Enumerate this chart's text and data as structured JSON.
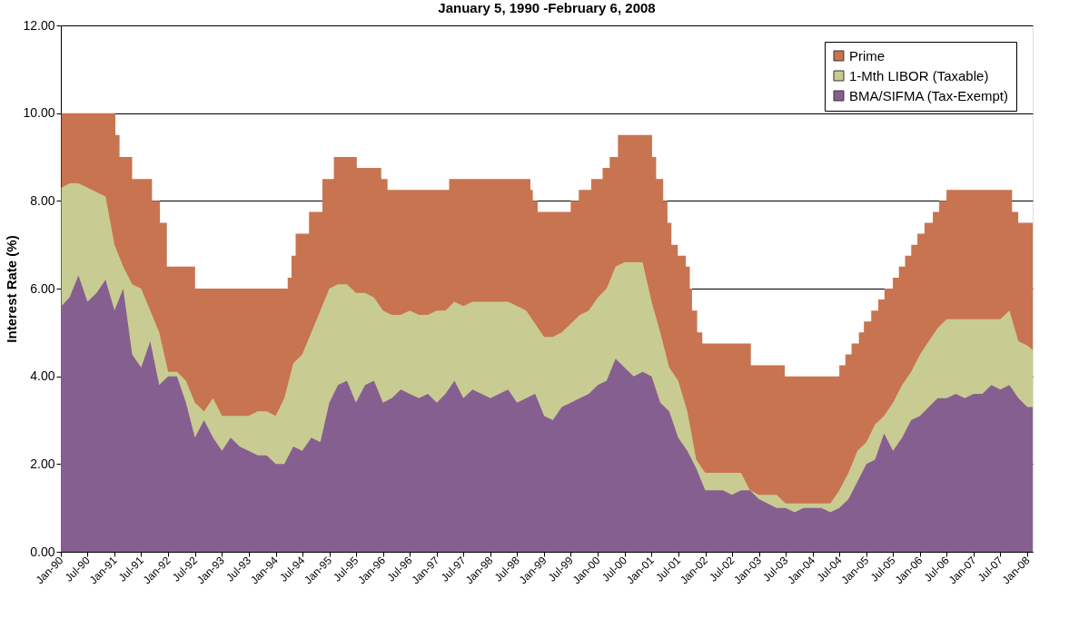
{
  "chart_data": {
    "type": "area",
    "title": "January 5, 1990 -February 6, 2008",
    "ylabel": "Interest Rate (%)",
    "x": [
      "1990-01-05",
      "1990-03",
      "1990-05",
      "1990-07",
      "1990-09",
      "1990-11",
      "1991-01",
      "1991-03",
      "1991-05",
      "1991-07",
      "1991-09",
      "1991-11",
      "1992-01",
      "1992-03",
      "1992-05",
      "1992-07",
      "1992-09",
      "1992-11",
      "1993-01",
      "1993-03",
      "1993-05",
      "1993-07",
      "1993-09",
      "1993-11",
      "1994-01",
      "1994-03",
      "1994-05",
      "1994-07",
      "1994-09",
      "1994-11",
      "1995-01",
      "1995-03",
      "1995-05",
      "1995-07",
      "1995-09",
      "1995-11",
      "1996-01",
      "1996-03",
      "1996-05",
      "1996-07",
      "1996-09",
      "1996-11",
      "1997-01",
      "1997-03",
      "1997-05",
      "1997-07",
      "1997-09",
      "1997-11",
      "1998-01",
      "1998-03",
      "1998-05",
      "1998-07",
      "1998-09",
      "1998-11",
      "1999-01",
      "1999-03",
      "1999-05",
      "1999-07",
      "1999-09",
      "1999-11",
      "2000-01",
      "2000-03",
      "2000-05",
      "2000-07",
      "2000-09",
      "2000-11",
      "2001-01",
      "2001-03",
      "2001-05",
      "2001-07",
      "2001-09",
      "2001-11",
      "2002-01",
      "2002-03",
      "2002-05",
      "2002-07",
      "2002-09",
      "2002-11",
      "2003-01",
      "2003-03",
      "2003-05",
      "2003-07",
      "2003-09",
      "2003-11",
      "2004-01",
      "2004-03",
      "2004-05",
      "2004-07",
      "2004-09",
      "2004-11",
      "2005-01",
      "2005-03",
      "2005-05",
      "2005-07",
      "2005-09",
      "2005-11",
      "2006-01",
      "2006-03",
      "2006-05",
      "2006-07",
      "2006-09",
      "2006-11",
      "2007-01",
      "2007-03",
      "2007-05",
      "2007-07",
      "2007-09",
      "2007-11",
      "2008-01",
      "2008-02-06"
    ],
    "series": [
      {
        "name": "Prime",
        "color": "#c87450",
        "x": [
          "1990-01-05",
          "1991-01-07",
          "1991-01-07",
          "1991-02-04",
          "1991-02-04",
          "1991-05-01",
          "1991-05-01",
          "1991-09-13",
          "1991-09-13",
          "1991-11-06",
          "1991-11-06",
          "1991-12-23",
          "1991-12-23",
          "1992-07-02",
          "1992-07-02",
          "1994-03-24",
          "1994-03-24",
          "1994-04-19",
          "1994-04-19",
          "1994-05-17",
          "1994-05-17",
          "1994-08-16",
          "1994-08-16",
          "1994-11-15",
          "1994-11-15",
          "1995-02-01",
          "1995-02-01",
          "1995-07-07",
          "1995-07-07",
          "1995-12-20",
          "1995-12-20",
          "1996-02-01",
          "1996-02-01",
          "1997-03-26",
          "1997-03-26",
          "1998-09-30",
          "1998-09-30",
          "1998-10-16",
          "1998-10-16",
          "1998-11-18",
          "1998-11-18",
          "1999-07-01",
          "1999-07-01",
          "1999-08-25",
          "1999-08-25",
          "1999-11-17",
          "1999-11-17",
          "2000-02-03",
          "2000-02-03",
          "2000-03-22",
          "2000-03-22",
          "2000-05-17",
          "2000-05-17",
          "2001-01-04",
          "2001-01-04",
          "2001-02-01",
          "2001-02-01",
          "2001-03-21",
          "2001-03-21",
          "2001-04-19",
          "2001-04-19",
          "2001-05-16",
          "2001-05-16",
          "2001-06-28",
          "2001-06-28",
          "2001-08-22",
          "2001-08-22",
          "2001-09-18",
          "2001-09-18",
          "2001-10-03",
          "2001-10-03",
          "2001-11-07",
          "2001-11-07",
          "2001-12-12",
          "2001-12-12",
          "2002-11-07",
          "2002-11-07",
          "2003-06-26",
          "2003-06-26",
          "2004-07-01",
          "2004-07-01",
          "2004-08-11",
          "2004-08-11",
          "2004-09-22",
          "2004-09-22",
          "2004-11-11",
          "2004-11-11",
          "2004-12-15",
          "2004-12-15",
          "2005-02-03",
          "2005-02-03",
          "2005-03-23",
          "2005-03-23",
          "2005-05-04",
          "2005-05-04",
          "2005-06-30",
          "2005-06-30",
          "2005-08-10",
          "2005-08-10",
          "2005-09-21",
          "2005-09-21",
          "2005-11-02",
          "2005-11-02",
          "2005-12-14",
          "2005-12-14",
          "2006-01-31",
          "2006-01-31",
          "2006-03-29",
          "2006-03-29",
          "2006-05-11",
          "2006-05-11",
          "2006-06-30",
          "2006-06-30",
          "2007-09-19",
          "2007-09-19",
          "2007-10-31",
          "2007-10-31",
          "2008-02-06"
        ],
        "values": [
          10.0,
          10.0,
          9.5,
          9.5,
          9.0,
          9.0,
          8.5,
          8.5,
          8.0,
          8.0,
          7.5,
          7.5,
          6.5,
          6.5,
          6.0,
          6.0,
          6.25,
          6.25,
          6.75,
          6.75,
          7.25,
          7.25,
          7.75,
          7.75,
          8.5,
          8.5,
          9.0,
          9.0,
          8.75,
          8.75,
          8.5,
          8.5,
          8.25,
          8.25,
          8.5,
          8.5,
          8.25,
          8.25,
          8.0,
          8.0,
          7.75,
          7.75,
          8.0,
          8.0,
          8.25,
          8.25,
          8.5,
          8.5,
          8.75,
          8.75,
          9.0,
          9.0,
          9.5,
          9.5,
          9.0,
          9.0,
          8.5,
          8.5,
          8.0,
          8.0,
          7.5,
          7.5,
          7.0,
          7.0,
          6.75,
          6.75,
          6.5,
          6.5,
          6.0,
          6.0,
          5.5,
          5.5,
          5.0,
          5.0,
          4.75,
          4.75,
          4.25,
          4.25,
          4.0,
          4.0,
          4.25,
          4.25,
          4.5,
          4.5,
          4.75,
          4.75,
          5.0,
          5.0,
          5.25,
          5.25,
          5.5,
          5.5,
          5.75,
          5.75,
          6.0,
          6.0,
          6.25,
          6.25,
          6.5,
          6.5,
          6.75,
          6.75,
          7.0,
          7.0,
          7.25,
          7.25,
          7.5,
          7.5,
          7.75,
          7.75,
          8.0,
          8.0,
          8.25,
          8.25,
          7.75,
          7.75,
          7.5,
          7.5
        ]
      },
      {
        "name": "1-Mth LIBOR (Taxable)",
        "color": "#c9cc92",
        "values": [
          8.3,
          8.4,
          8.4,
          8.3,
          8.2,
          8.1,
          7.0,
          6.5,
          6.1,
          6.0,
          5.5,
          5.0,
          4.1,
          4.1,
          3.9,
          3.4,
          3.2,
          3.5,
          3.1,
          3.1,
          3.1,
          3.1,
          3.2,
          3.2,
          3.1,
          3.5,
          4.3,
          4.5,
          5.0,
          5.5,
          6.0,
          6.1,
          6.1,
          5.9,
          5.9,
          5.8,
          5.5,
          5.4,
          5.4,
          5.5,
          5.4,
          5.4,
          5.5,
          5.5,
          5.7,
          5.6,
          5.7,
          5.7,
          5.7,
          5.7,
          5.7,
          5.6,
          5.5,
          5.2,
          4.9,
          4.9,
          5.0,
          5.2,
          5.4,
          5.5,
          5.8,
          6.0,
          6.5,
          6.6,
          6.6,
          6.6,
          5.7,
          5.0,
          4.2,
          3.9,
          3.2,
          2.1,
          1.8,
          1.8,
          1.8,
          1.8,
          1.8,
          1.4,
          1.3,
          1.3,
          1.3,
          1.1,
          1.1,
          1.1,
          1.1,
          1.1,
          1.1,
          1.4,
          1.8,
          2.3,
          2.5,
          2.9,
          3.1,
          3.4,
          3.8,
          4.1,
          4.5,
          4.8,
          5.1,
          5.3,
          5.3,
          5.3,
          5.3,
          5.3,
          5.3,
          5.3,
          5.5,
          4.8,
          4.7,
          4.6
        ]
      },
      {
        "name": "BMA/SIFMA (Tax-Exempt)",
        "color": "#865f91",
        "values": [
          5.6,
          5.8,
          6.3,
          5.7,
          5.9,
          6.2,
          5.5,
          6.0,
          4.5,
          4.2,
          4.8,
          3.8,
          4.0,
          4.0,
          3.4,
          2.6,
          3.0,
          2.6,
          2.3,
          2.6,
          2.4,
          2.3,
          2.2,
          2.2,
          2.0,
          2.0,
          2.4,
          2.3,
          2.6,
          2.5,
          3.4,
          3.8,
          3.9,
          3.4,
          3.8,
          3.9,
          3.4,
          3.5,
          3.7,
          3.6,
          3.5,
          3.6,
          3.4,
          3.6,
          3.9,
          3.5,
          3.7,
          3.6,
          3.5,
          3.6,
          3.7,
          3.4,
          3.5,
          3.6,
          3.1,
          3.0,
          3.3,
          3.4,
          3.5,
          3.6,
          3.8,
          3.9,
          4.4,
          4.2,
          4.0,
          4.1,
          4.0,
          3.4,
          3.2,
          2.6,
          2.3,
          1.9,
          1.4,
          1.4,
          1.4,
          1.3,
          1.4,
          1.4,
          1.2,
          1.1,
          1.0,
          1.0,
          0.9,
          1.0,
          1.0,
          1.0,
          0.9,
          1.0,
          1.2,
          1.6,
          2.0,
          2.1,
          2.7,
          2.3,
          2.6,
          3.0,
          3.1,
          3.3,
          3.5,
          3.5,
          3.6,
          3.5,
          3.6,
          3.6,
          3.8,
          3.7,
          3.8,
          3.5,
          3.3,
          3.3
        ]
      }
    ],
    "xlim": [
      "1990-01-01",
      "2008-02-06"
    ],
    "xticks": [
      {
        "value": "1990-01",
        "label": "Jan-90"
      },
      {
        "value": "1990-07",
        "label": "Jul-90"
      },
      {
        "value": "1991-01",
        "label": "Jan-91"
      },
      {
        "value": "1991-07",
        "label": "Jul-91"
      },
      {
        "value": "1992-01",
        "label": "Jan-92"
      },
      {
        "value": "1992-07",
        "label": "Jul-92"
      },
      {
        "value": "1993-01",
        "label": "Jan-93"
      },
      {
        "value": "1993-07",
        "label": "Jul-93"
      },
      {
        "value": "1994-01",
        "label": "Jan-94"
      },
      {
        "value": "1994-07",
        "label": "Jul-94"
      },
      {
        "value": "1995-01",
        "label": "Jan-95"
      },
      {
        "value": "1995-07",
        "label": "Jul-95"
      },
      {
        "value": "1996-01",
        "label": "Jan-96"
      },
      {
        "value": "1996-07",
        "label": "Jul-96"
      },
      {
        "value": "1997-01",
        "label": "Jan-97"
      },
      {
        "value": "1997-07",
        "label": "Jul-97"
      },
      {
        "value": "1998-01",
        "label": "Jan-98"
      },
      {
        "value": "1998-07",
        "label": "Jul-98"
      },
      {
        "value": "1999-01",
        "label": "Jan-99"
      },
      {
        "value": "1999-07",
        "label": "Jul-99"
      },
      {
        "value": "2000-01",
        "label": "Jan-00"
      },
      {
        "value": "2000-07",
        "label": "Jul-00"
      },
      {
        "value": "2001-01",
        "label": "Jan-01"
      },
      {
        "value": "2001-07",
        "label": "Jul-01"
      },
      {
        "value": "2002-01",
        "label": "Jan-02"
      },
      {
        "value": "2002-07",
        "label": "Jul-02"
      },
      {
        "value": "2003-01",
        "label": "Jan-03"
      },
      {
        "value": "2003-07",
        "label": "Jul-03"
      },
      {
        "value": "2004-01",
        "label": "Jan-04"
      },
      {
        "value": "2004-07",
        "label": "Jul-04"
      },
      {
        "value": "2005-01",
        "label": "Jan-05"
      },
      {
        "value": "2005-07",
        "label": "Jul-05"
      },
      {
        "value": "2006-01",
        "label": "Jan-06"
      },
      {
        "value": "2006-07",
        "label": "Jul-06"
      },
      {
        "value": "2007-01",
        "label": "Jan-07"
      },
      {
        "value": "2007-07",
        "label": "Jul-07"
      },
      {
        "value": "2008-01",
        "label": "Jan-08"
      }
    ],
    "ylim": [
      0,
      12
    ],
    "yticks": [
      {
        "value": 0,
        "label": "0.00"
      },
      {
        "value": 2,
        "label": "2.00"
      },
      {
        "value": 4,
        "label": "4.00"
      },
      {
        "value": 6,
        "label": "6.00"
      },
      {
        "value": 8,
        "label": "8.00"
      },
      {
        "value": 10,
        "label": "10.00"
      },
      {
        "value": 12,
        "label": "12.00"
      }
    ],
    "grid": "y",
    "legend": "top right"
  }
}
